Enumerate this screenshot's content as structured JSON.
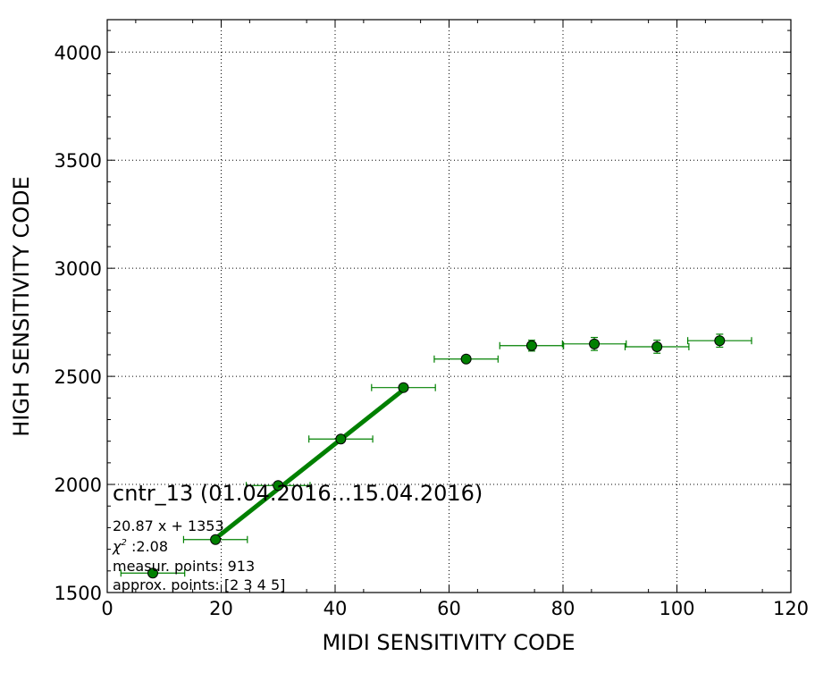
{
  "chart_data": {
    "type": "scatter",
    "xlabel": "MIDI SENSITIVITY CODE",
    "ylabel": "HIGH SENSITIVITY CODE",
    "xlim": [
      0,
      120
    ],
    "ylim": [
      1500,
      4150
    ],
    "x_ticks": [
      "0",
      "20",
      "40",
      "60",
      "80",
      "100",
      "120"
    ],
    "y_ticks": [
      "1500",
      "2000",
      "2500",
      "3000",
      "3500",
      "4000"
    ],
    "grid": true,
    "colors": {
      "points": "#008000",
      "fit_line": "#008000",
      "errorbars": "#008000"
    },
    "series": [
      {
        "points": [
          {
            "x": 8.0,
            "y": 1590,
            "xerr": 5.6,
            "yerr": 15
          },
          {
            "x": 19.0,
            "y": 1745,
            "xerr": 5.6,
            "yerr": 15
          },
          {
            "x": 30.0,
            "y": 1995,
            "xerr": 5.6,
            "yerr": 15
          },
          {
            "x": 41.0,
            "y": 2210,
            "xerr": 5.6,
            "yerr": 15
          },
          {
            "x": 52.0,
            "y": 2448,
            "xerr": 5.6,
            "yerr": 15
          },
          {
            "x": 63.0,
            "y": 2580,
            "xerr": 5.6,
            "yerr": 15
          },
          {
            "x": 74.5,
            "y": 2642,
            "xerr": 5.6,
            "yerr": 25
          },
          {
            "x": 85.5,
            "y": 2650,
            "xerr": 5.6,
            "yerr": 30
          },
          {
            "x": 96.5,
            "y": 2637,
            "xerr": 5.6,
            "yerr": 30
          },
          {
            "x": 107.5,
            "y": 2665,
            "xerr": 5.6,
            "yerr": 30
          }
        ]
      }
    ],
    "fit": {
      "slope": 20.87,
      "intercept": 1353,
      "x_range": [
        19,
        52
      ]
    },
    "annotations": {
      "title": "cntr_13 (01.04.2016...15.04.2016)",
      "fit_text": "20.87 x + 1353",
      "chi2_text": ":2.08",
      "meas_text": "measur. points: 913",
      "approx_text": "approx. points: [2 3 4 5]"
    }
  }
}
